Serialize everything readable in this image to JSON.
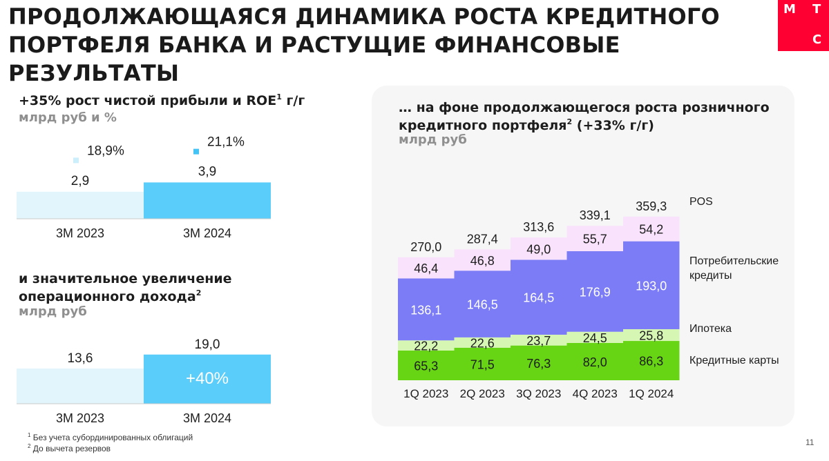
{
  "title": "Продолжающаяся динамика роста кредитного портфеля банка и растущие финансовые результаты",
  "logo": {
    "letters": [
      "М",
      "Т",
      "С"
    ],
    "color": "#ff0032"
  },
  "chart_data": [
    {
      "type": "bar",
      "title": "+35% рост чистой прибыли и ROE г/г",
      "title_sup": "1",
      "subtitle": "млрд руб и %",
      "categories": [
        "3M 2023",
        "3M 2024"
      ],
      "series": [
        {
          "name": "Чистая прибыль",
          "values": [
            2.9,
            3.9
          ],
          "labels": [
            "2,9",
            "3,9"
          ]
        },
        {
          "name": "ROE",
          "values": [
            18.9,
            21.1
          ],
          "labels": [
            "18,9%",
            "21,1%"
          ]
        }
      ],
      "colors": [
        "#e2f5fc",
        "#5bcdfb"
      ],
      "roe_marker_colors": [
        "#cdeffc",
        "#45c3f5"
      ]
    },
    {
      "type": "bar",
      "title": "и значительное увеличение операционного дохода",
      "title_sup": "2",
      "subtitle": "млрд руб",
      "categories": [
        "3M 2023",
        "3M 2024"
      ],
      "values": [
        13.6,
        19.0
      ],
      "labels": [
        "13,6",
        "19,0"
      ],
      "annotation": "+40%",
      "colors": [
        "#e2f5fc",
        "#5bcdfb"
      ]
    },
    {
      "type": "bar",
      "stacked": true,
      "title": "… на фоне продолжающегося роста розничного кредитного портфеля (+33% г/г)",
      "title_sup": "2",
      "title_after_sup": " (+33% г/г)",
      "title_before_sup": "… на фоне продолжающегося роста розничного кредитного портфеля",
      "subtitle": "млрд руб",
      "categories": [
        "1Q 2023",
        "2Q 2023",
        "3Q 2023",
        "4Q 2023",
        "1Q 2024"
      ],
      "totals": [
        270.0,
        287.4,
        313.6,
        339.1,
        359.3
      ],
      "total_labels": [
        "270,0",
        "287,4",
        "313,6",
        "339,1",
        "359,3"
      ],
      "series": [
        {
          "name": "Кредитные карты",
          "values": [
            65.3,
            71.5,
            76.3,
            82.0,
            86.3
          ],
          "labels": [
            "65,3",
            "71,5",
            "76,3",
            "82,0",
            "86,3"
          ],
          "color": "#67d414"
        },
        {
          "name": "Ипотека",
          "values": [
            22.2,
            22.6,
            23.7,
            24.5,
            25.8
          ],
          "labels": [
            "22,2",
            "22,6",
            "23,7",
            "24,5",
            "25,8"
          ],
          "color": "#d5f7b3"
        },
        {
          "name": "Потребительские кредиты",
          "values": [
            136.1,
            146.5,
            164.5,
            176.9,
            193.0
          ],
          "labels": [
            "136,1",
            "146,5",
            "164,5",
            "176,9",
            "193,0"
          ],
          "color": "#7b7cf6"
        },
        {
          "name": "POS",
          "values": [
            46.4,
            46.8,
            49.0,
            55.7,
            54.2
          ],
          "labels": [
            "46,4",
            "46,8",
            "49,0",
            "55,7",
            "54,2"
          ],
          "color": "#f9e2fc"
        }
      ],
      "legend_lines": [
        [
          "POS"
        ],
        [
          "Потребительские",
          "кредиты"
        ],
        [
          "Ипотека"
        ],
        [
          "Кредитные карты"
        ]
      ]
    }
  ],
  "footnotes": [
    "Без учета субординированных облигаций",
    "До вычета резервов"
  ],
  "footnote_marks": [
    "1",
    "2"
  ],
  "page_number": "11"
}
